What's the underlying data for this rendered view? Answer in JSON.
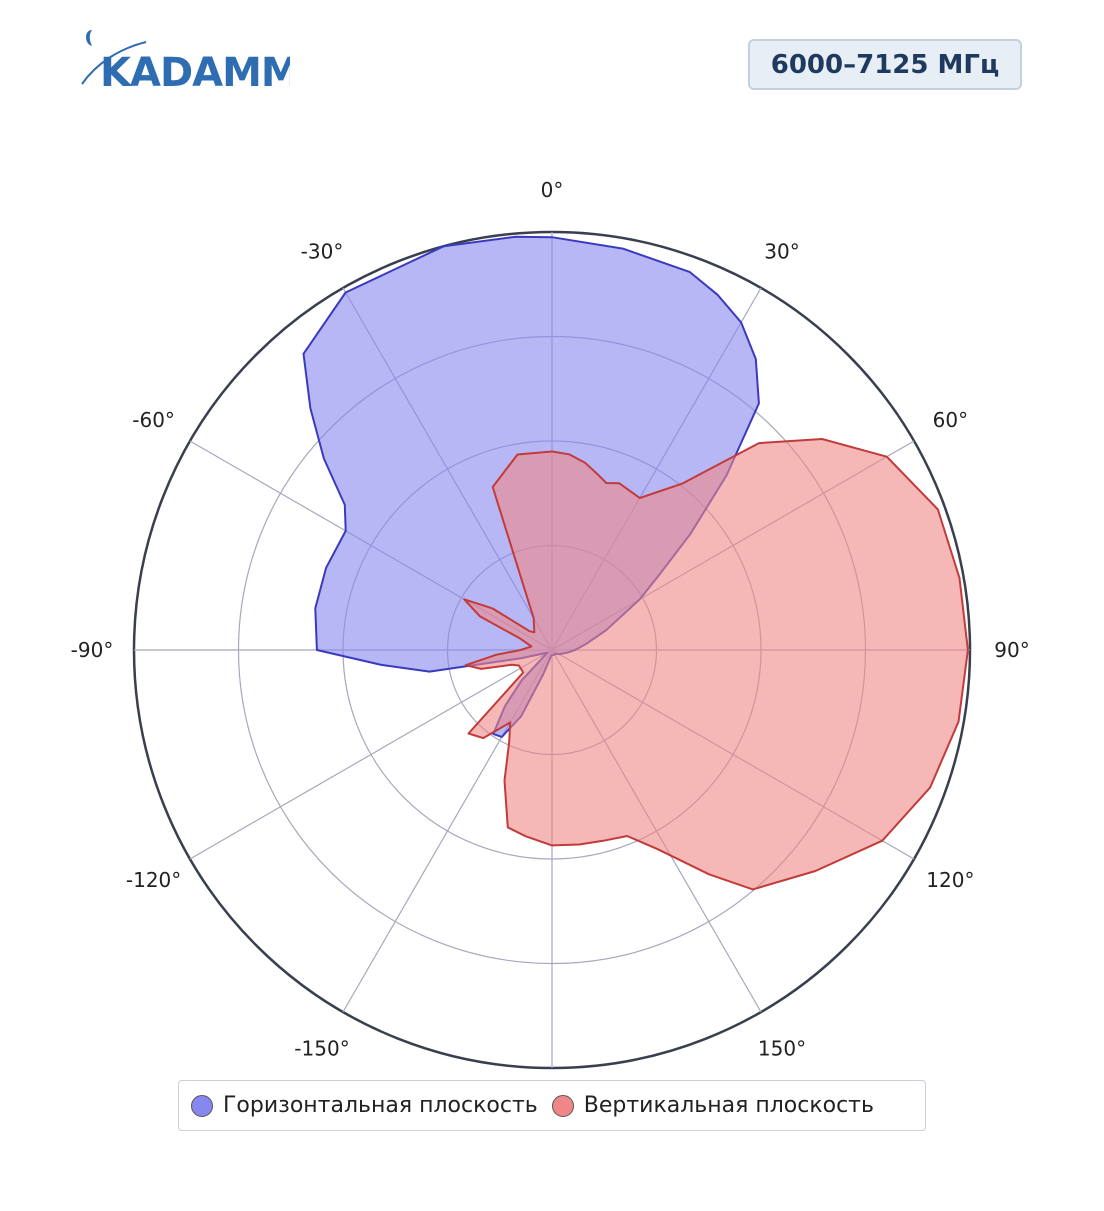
{
  "brand": {
    "name": "KADAMM",
    "color": "#2f6db3"
  },
  "frequency_badge": "6000–7125 МГц",
  "chart_data": {
    "type": "polar-area",
    "title": "",
    "angle_direction": "clockwise",
    "zero_at": "top",
    "angle_ticks": [
      "0°",
      "30°",
      "60°",
      "90°",
      "120°",
      "150°",
      "-150°",
      "-120°",
      "-90°",
      "-60°",
      "-30°"
    ],
    "angle_tick_values": [
      0,
      30,
      60,
      90,
      120,
      150,
      -150,
      -120,
      -90,
      -60,
      -30
    ],
    "radial_range": [
      0,
      4
    ],
    "radial_gridlines": [
      1,
      2,
      3,
      4
    ],
    "grid": true,
    "legend_position": "bottom",
    "series": [
      {
        "name": "Горизонтальная плоскость",
        "color": "#8787f0",
        "fill_opacity": 0.6,
        "line_color": "#3a3abf",
        "points": [
          [
            0,
            3.95
          ],
          [
            10,
            3.9
          ],
          [
            20,
            3.85
          ],
          [
            25,
            3.75
          ],
          [
            30,
            3.62
          ],
          [
            35,
            3.4
          ],
          [
            40,
            3.08
          ],
          [
            45,
            2.36
          ],
          [
            50,
            1.73
          ],
          [
            55,
            1.25
          ],
          [
            60,
            0.97
          ],
          [
            70,
            0.55
          ],
          [
            80,
            0.33
          ],
          [
            90,
            0.22
          ],
          [
            100,
            0.15
          ],
          [
            110,
            0.1
          ],
          [
            120,
            0.08
          ],
          [
            135,
            0.05
          ],
          [
            150,
            0.05
          ],
          [
            170,
            0.05
          ],
          [
            185,
            0.05
          ],
          [
            200,
            0.25
          ],
          [
            205,
            0.7
          ],
          [
            210,
            0.96
          ],
          [
            215,
            0.98
          ],
          [
            220,
            0.7
          ],
          [
            225,
            0.41
          ],
          [
            240,
            0.05
          ],
          [
            255,
            0.3
          ],
          [
            260,
            1.19
          ],
          [
            265,
            1.64
          ],
          [
            270,
            2.25
          ],
          [
            280,
            2.3
          ],
          [
            290,
            2.3
          ],
          [
            300,
            2.28
          ],
          [
            305,
            2.42
          ],
          [
            310,
            2.85
          ],
          [
            315,
            3.27
          ],
          [
            320,
            3.7
          ],
          [
            330,
            3.95
          ],
          [
            345,
            4.0
          ],
          [
            355,
            3.97
          ]
        ]
      },
      {
        "name": "Вертикальная плоскость",
        "color": "#f08787",
        "fill_opacity": 0.6,
        "line_color": "#c23b3b",
        "points": [
          [
            0,
            1.9
          ],
          [
            5,
            1.88
          ],
          [
            10,
            1.82
          ],
          [
            15,
            1.73
          ],
          [
            18,
            1.68
          ],
          [
            22,
            1.72
          ],
          [
            30,
            1.68
          ],
          [
            38,
            2.02
          ],
          [
            45,
            2.8
          ],
          [
            52,
            3.28
          ],
          [
            60,
            3.7
          ],
          [
            70,
            3.93
          ],
          [
            80,
            3.96
          ],
          [
            90,
            3.98
          ],
          [
            100,
            3.95
          ],
          [
            110,
            3.85
          ],
          [
            120,
            3.65
          ],
          [
            130,
            3.29
          ],
          [
            140,
            2.99
          ],
          [
            145,
            2.62
          ],
          [
            152,
            2.16
          ],
          [
            158,
            1.92
          ],
          [
            165,
            1.89
          ],
          [
            172,
            1.88
          ],
          [
            180,
            1.87
          ],
          [
            188,
            1.8
          ],
          [
            194,
            1.75
          ],
          [
            200,
            1.33
          ],
          [
            205,
            0.97
          ],
          [
            210,
            0.8
          ],
          [
            218,
            1.07
          ],
          [
            225,
            1.13
          ],
          [
            232,
            0.35
          ],
          [
            245,
            0.35
          ],
          [
            250,
            0.41
          ],
          [
            255,
            0.7
          ],
          [
            260,
            0.84
          ],
          [
            265,
            0.54
          ],
          [
            270,
            0.3
          ],
          [
            280,
            0.2
          ],
          [
            290,
            0.33
          ],
          [
            295,
            0.76
          ],
          [
            300,
            0.97
          ],
          [
            305,
            0.69
          ],
          [
            310,
            0.28
          ],
          [
            315,
            0.24
          ],
          [
            330,
            0.35
          ],
          [
            340,
            1.66
          ],
          [
            350,
            1.9
          ]
        ]
      }
    ]
  }
}
